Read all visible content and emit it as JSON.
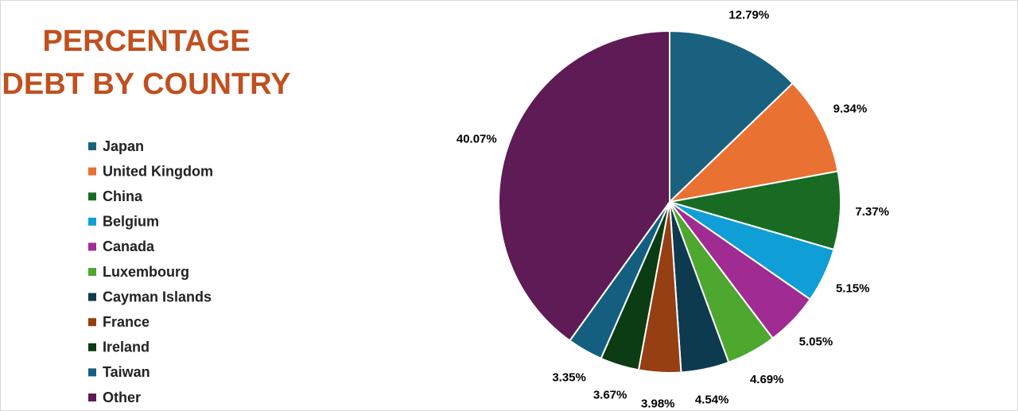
{
  "chart_data": {
    "type": "pie",
    "title": "PERCENTAGE DEBT BY COUNTRY",
    "categories": [
      "Japan",
      "United Kingdom",
      "China",
      "Belgium",
      "Canada",
      "Luxembourg",
      "Cayman Islands",
      "France",
      "Ireland",
      "Taiwan",
      "Other"
    ],
    "values": [
      12.79,
      9.34,
      7.37,
      5.15,
      5.05,
      4.69,
      4.54,
      3.98,
      3.67,
      3.35,
      40.07
    ],
    "value_labels": [
      "12.79%",
      "9.34%",
      "7.37%",
      "5.15%",
      "5.05%",
      "4.69%",
      "4.54%",
      "3.98%",
      "3.67%",
      "3.35%",
      "40.07%"
    ],
    "colors": [
      "#1a6180",
      "#e97132",
      "#196b24",
      "#0f9ed5",
      "#a02b93",
      "#4ea72e",
      "#0e3a4f",
      "#953f13",
      "#0b3c13",
      "#145f80",
      "#5e1b55"
    ],
    "legend": "left"
  }
}
